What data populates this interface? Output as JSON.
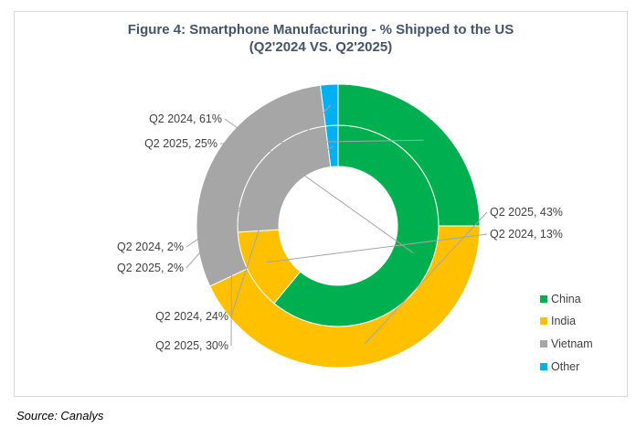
{
  "chart_data": {
    "type": "pie",
    "subtype": "nested-donut",
    "title": "Figure 4: Smartphone Manufacturing - % Shipped to the US",
    "subtitle": "(Q2'2024 VS. Q2'2025)",
    "legend_position": "right",
    "categories": [
      "China",
      "India",
      "Vietnam",
      "Other"
    ],
    "colors": {
      "China": "#00b050",
      "India": "#ffc000",
      "Vietnam": "#a6a6a6",
      "Other": "#00b0f0"
    },
    "series": [
      {
        "name": "Q2 2024",
        "ring": "inner",
        "values": [
          61,
          13,
          24,
          2
        ],
        "labels": [
          "Q2 2024, 61%",
          "Q2 2024, 13%",
          "Q2 2024, 24%",
          "Q2 2024, 2%"
        ]
      },
      {
        "name": "Q2 2025",
        "ring": "outer",
        "values": [
          25,
          43,
          30,
          2
        ],
        "labels": [
          "Q2 2025, 25%",
          "Q2 2025, 43%",
          "Q2 2025, 30%",
          "Q2 2025, 2%"
        ]
      }
    ]
  },
  "source": "Source: Canalys"
}
